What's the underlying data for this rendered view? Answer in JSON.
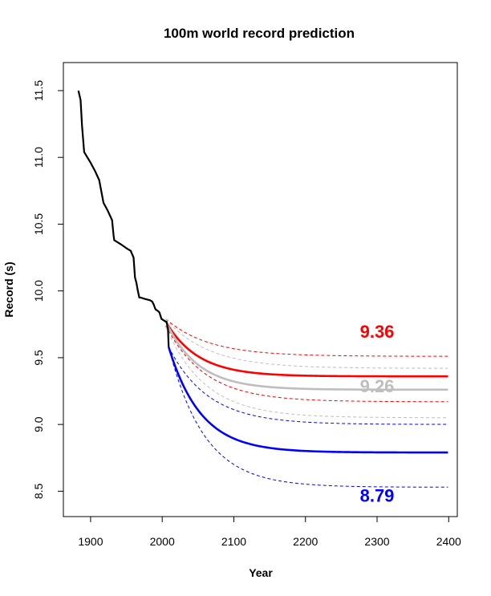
{
  "chart_data": {
    "type": "line",
    "title": "100m world record prediction",
    "xlabel": "Year",
    "ylabel": "Record (s)",
    "xlim": [
      1862,
      2412
    ],
    "ylim": [
      8.31,
      11.71
    ],
    "x_ticks": [
      1900,
      2000,
      2100,
      2200,
      2300,
      2400
    ],
    "y_ticks": [
      8.5,
      9.0,
      9.5,
      10.0,
      10.5,
      11.0,
      11.5
    ],
    "x_tick_labels": [
      "1900",
      "2000",
      "2100",
      "2200",
      "2300",
      "2400"
    ],
    "y_tick_labels": [
      "8.5",
      "9.0",
      "9.5",
      "10.0",
      "10.5",
      "11.0",
      "11.5"
    ],
    "grid": false,
    "historical": {
      "color": "#000000",
      "x": [
        1883,
        1886,
        1888,
        1891,
        1900,
        1906,
        1912,
        1918,
        1924,
        1930,
        1932,
        1933,
        1936,
        1942,
        1950,
        1956,
        1960,
        1962,
        1964,
        1966,
        1968,
        1970,
        1976,
        1983,
        1986,
        1988,
        1990,
        1991,
        1994,
        1996,
        1999,
        2002,
        2005,
        2006,
        2008,
        2009
      ],
      "y": [
        11.5,
        11.43,
        11.24,
        11.04,
        10.96,
        10.9,
        10.83,
        10.66,
        10.6,
        10.53,
        10.42,
        10.38,
        10.37,
        10.35,
        10.32,
        10.3,
        10.25,
        10.1,
        10.06,
        10.0,
        9.95,
        9.95,
        9.94,
        9.93,
        9.92,
        9.9,
        9.87,
        9.86,
        9.85,
        9.84,
        9.79,
        9.78,
        9.77,
        9.77,
        9.72,
        9.58
      ]
    },
    "projection_x_start": 2005,
    "projection_x_end": 2400,
    "series": [
      {
        "color": "#ff0000",
        "asymptote": 9.36,
        "label": "9.36",
        "label_x": 2300,
        "label_y": 9.65,
        "central": {
          "x0": 2005,
          "y0": 9.77,
          "tau": 45
        },
        "upper": {
          "x0": 2005,
          "y0": 9.79,
          "asymptote": 9.51,
          "tau": 60
        },
        "lower": {
          "x0": 2005,
          "y0": 9.74,
          "asymptote": 9.17,
          "tau": 55
        }
      },
      {
        "color": "#bebebe",
        "asymptote": 9.26,
        "label": "9.26",
        "label_x": 2300,
        "label_y": 9.24,
        "central": {
          "x0": 2005,
          "y0": 9.77,
          "tau": 45
        },
        "upper": {
          "x0": 2005,
          "y0": 9.79,
          "asymptote": 9.42,
          "tau": 60
        },
        "lower": {
          "x0": 2005,
          "y0": 9.73,
          "asymptote": 9.05,
          "tau": 55
        }
      },
      {
        "color": "#0000ff",
        "asymptote": 8.79,
        "label": "8.79",
        "label_x": 2300,
        "label_y": 8.42,
        "central": {
          "x0": 2009,
          "y0": 9.58,
          "tau": 45
        },
        "upper": {
          "x0": 2009,
          "y0": 9.58,
          "asymptote": 9.0,
          "tau": 55
        },
        "lower": {
          "x0": 2009,
          "y0": 9.58,
          "asymptote": 8.53,
          "tau": 50
        }
      }
    ]
  }
}
